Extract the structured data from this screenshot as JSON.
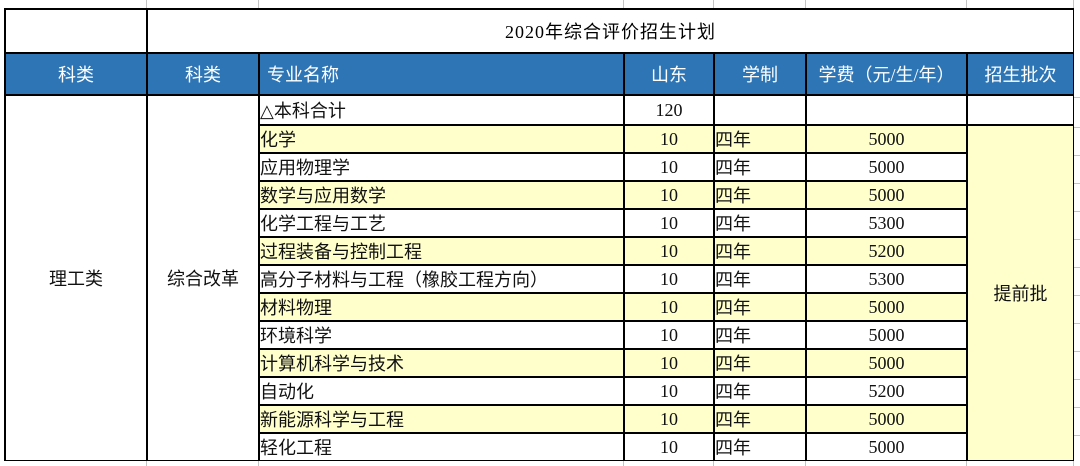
{
  "title": "2020年综合评价招生计划",
  "header": [
    "科类",
    "科类",
    "专业名称",
    "山东",
    "学制",
    "学费（元/生/年）",
    "招生批次"
  ],
  "merged_cells": {
    "subject_category": "理工类",
    "exam_mode": "综合改革",
    "admission_batch": "提前批"
  },
  "summary_row": {
    "program": "△本科合计",
    "shandong": "120",
    "duration": "",
    "tuition": "",
    "batch": ""
  },
  "rows": [
    {
      "program": "化学",
      "shandong": "10",
      "duration": "四年",
      "tuition": "5000",
      "highlighted": true
    },
    {
      "program": "应用物理学",
      "shandong": "10",
      "duration": "四年",
      "tuition": "5000",
      "highlighted": false
    },
    {
      "program": "数学与应用数学",
      "shandong": "10",
      "duration": "四年",
      "tuition": "5000",
      "highlighted": true
    },
    {
      "program": "化学工程与工艺",
      "shandong": "10",
      "duration": "四年",
      "tuition": "5300",
      "highlighted": false
    },
    {
      "program": "过程装备与控制工程",
      "shandong": "10",
      "duration": "四年",
      "tuition": "5200",
      "highlighted": true
    },
    {
      "program": "高分子材料与工程（橡胶工程方向）",
      "shandong": "10",
      "duration": "四年",
      "tuition": "5300",
      "highlighted": false
    },
    {
      "program": "材料物理",
      "shandong": "10",
      "duration": "四年",
      "tuition": "5000",
      "highlighted": true
    },
    {
      "program": "环境科学",
      "shandong": "10",
      "duration": "四年",
      "tuition": "5000",
      "highlighted": false
    },
    {
      "program": "计算机科学与技术",
      "shandong": "10",
      "duration": "四年",
      "tuition": "5000",
      "highlighted": true
    },
    {
      "program": "自动化",
      "shandong": "10",
      "duration": "四年",
      "tuition": "5200",
      "highlighted": false
    },
    {
      "program": "新能源科学与工程",
      "shandong": "10",
      "duration": "四年",
      "tuition": "5000",
      "highlighted": true
    },
    {
      "program": "轻化工程",
      "shandong": "10",
      "duration": "四年",
      "tuition": "5000",
      "highlighted": false
    }
  ],
  "colors": {
    "header_bg": "#2E75B6",
    "header_text": "#FFFFFF",
    "highlight_bg": "#FFFFCC",
    "border": "#000000",
    "gridline": "#C4C4C4"
  }
}
